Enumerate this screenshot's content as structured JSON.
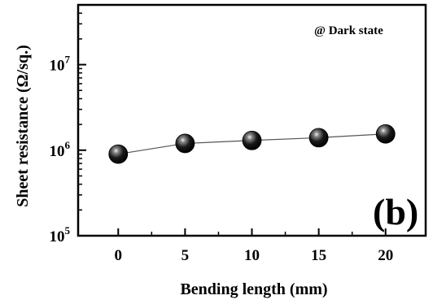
{
  "chart_data": {
    "type": "scatter",
    "panel_label": "(b)",
    "annotation": "@ Dark state",
    "xlabel": "Bending length (mm)",
    "ylabel": "Sheet resistance  (Ω/sq.)",
    "xlim": [
      -3,
      23
    ],
    "ylim": [
      100000,
      50000000
    ],
    "yscale": "log",
    "xticks": [
      0,
      5,
      10,
      15,
      20
    ],
    "yticks": [
      {
        "value": 100000,
        "base": "10",
        "exp": "5"
      },
      {
        "value": 1000000,
        "base": "10",
        "exp": "6"
      },
      {
        "value": 10000000,
        "base": "10",
        "exp": "7"
      }
    ],
    "x": [
      0,
      5,
      10,
      15,
      20
    ],
    "y": [
      900000,
      1200000,
      1300000,
      1400000,
      1550000
    ],
    "marker": "sphere",
    "line_style": "thin solid",
    "colors": {
      "marker": "#000000",
      "line": "#555555",
      "axes": "#000000"
    },
    "grid": false
  }
}
